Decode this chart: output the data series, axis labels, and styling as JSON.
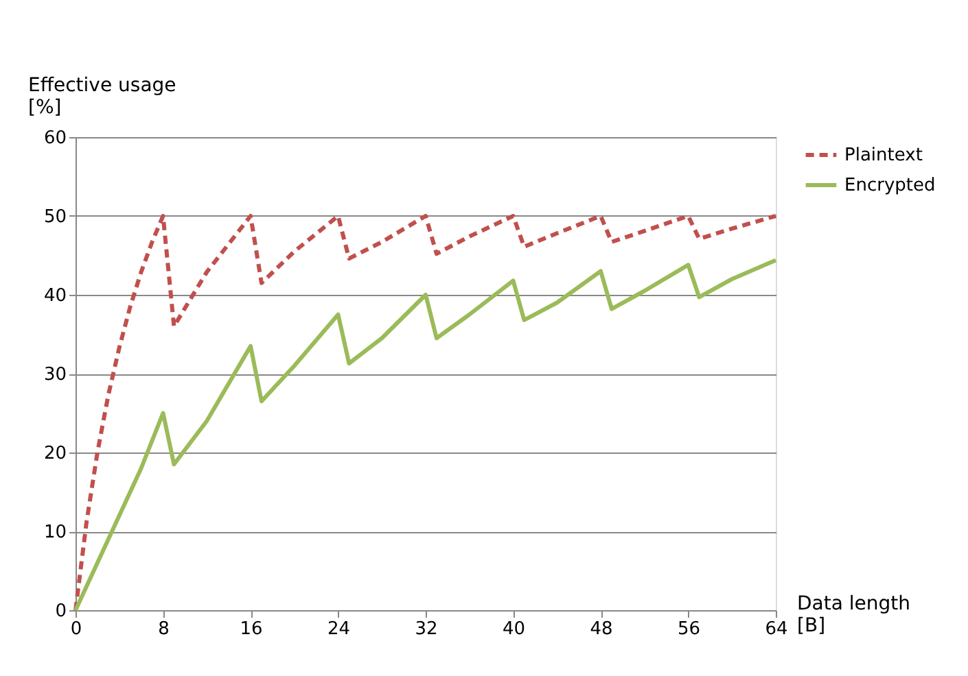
{
  "chart_data": {
    "type": "line",
    "xlabel": "Data length [B]",
    "ylabel": "Effective usage [%]",
    "xlim": [
      0,
      64
    ],
    "xticks": [
      0,
      8,
      16,
      24,
      32,
      40,
      48,
      56,
      64
    ],
    "ylim": [
      0,
      60
    ],
    "yticks": [
      0,
      10,
      20,
      30,
      40,
      50,
      60
    ],
    "grid": "y",
    "legend": "right",
    "series": [
      {
        "name": "Plaintext",
        "color": "#c0504d",
        "line_style": "dashed",
        "x": [
          0,
          1,
          2,
          3,
          4,
          5,
          6,
          7,
          8,
          9,
          12,
          16,
          17,
          20,
          24,
          25,
          28,
          32,
          33,
          36,
          40,
          41,
          44,
          48,
          49,
          52,
          56,
          57,
          60,
          64
        ],
        "values": [
          0,
          11.1,
          20,
          27.3,
          33.3,
          38.5,
          42.9,
          46.7,
          50,
          36,
          42.9,
          50,
          41.5,
          45.5,
          50,
          44.6,
          46.7,
          50,
          45.2,
          47.4,
          50,
          46.1,
          47.8,
          50,
          46.7,
          48.1,
          50,
          47.1,
          48.4,
          50
        ]
      },
      {
        "name": "Encrypted",
        "color": "#9bbb59",
        "line_style": "solid",
        "x": [
          0,
          2,
          4,
          6,
          8,
          9,
          12,
          16,
          17,
          20,
          24,
          25,
          28,
          32,
          33,
          36,
          40,
          41,
          44,
          48,
          49,
          52,
          56,
          57,
          60,
          64
        ],
        "values": [
          0,
          6,
          12,
          18,
          25,
          18.5,
          24,
          33.5,
          26.5,
          31,
          37.5,
          31.3,
          34.5,
          40,
          34.5,
          37.5,
          41.8,
          36.8,
          39,
          43,
          38.2,
          40.5,
          43.8,
          39.7,
          42,
          44.4
        ]
      }
    ]
  }
}
